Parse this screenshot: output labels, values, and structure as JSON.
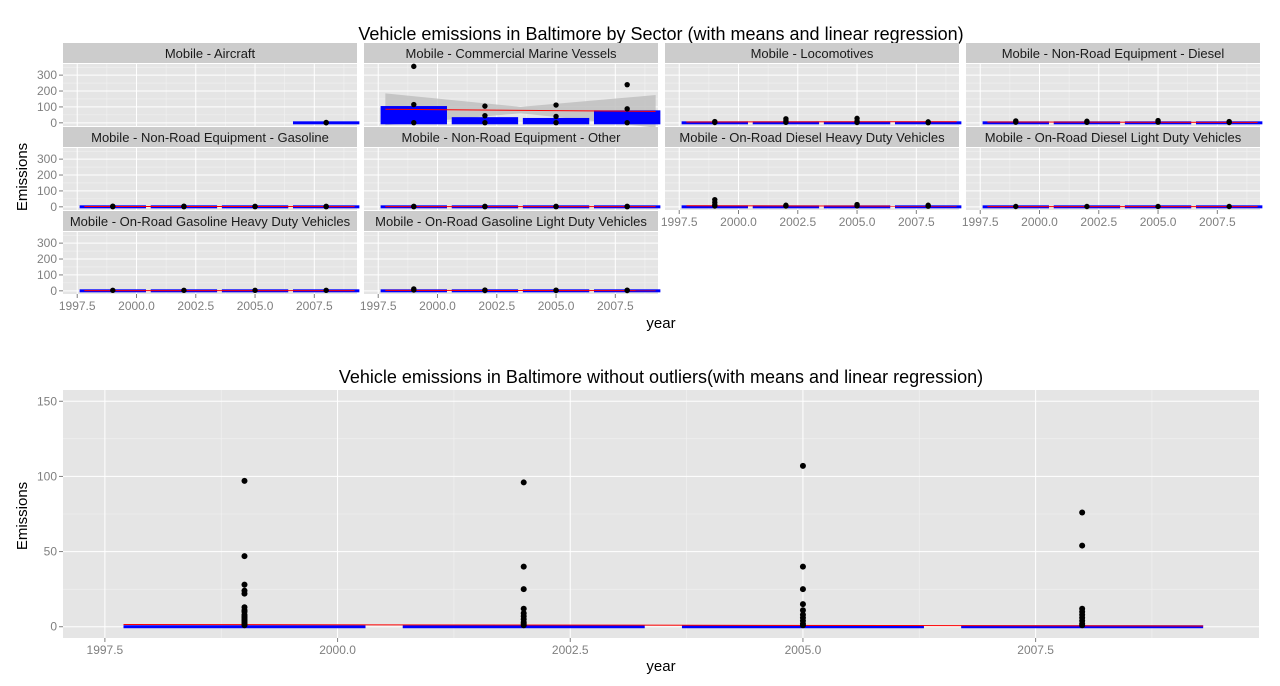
{
  "colors": {
    "panel": "#e5e5e5",
    "strip": "#cccccc",
    "point": "#000000",
    "mean_bar": "#0000ff",
    "regression": "#ff0000",
    "confidence_band": "#bfbfbf"
  },
  "chart_data": [
    {
      "type": "scatter",
      "title": "Vehicle emissions in Baltimore by Sector (with means and linear regression)",
      "xlabel": "year",
      "ylabel": "Emissions",
      "xlim": [
        1996.9,
        2009.3
      ],
      "ylim": [
        -20,
        370
      ],
      "x_ticks": [
        1997.5,
        2000.0,
        2002.5,
        2005.0,
        2007.5
      ],
      "x_tick_labels": [
        "1997.5",
        "2000.0",
        "2002.5",
        "2005.0",
        "2007.5"
      ],
      "y_ticks": [
        0,
        100,
        200,
        300
      ],
      "y_tick_labels": [
        "0",
        "100",
        "200",
        "300"
      ],
      "grid": true,
      "facets": [
        {
          "name": "Mobile - Aircraft",
          "points": [
            [
              2008,
              2
            ],
            [
              2008,
              0.5
            ]
          ],
          "means": [
            [
              2008,
              1
            ]
          ],
          "regression": null,
          "band": null
        },
        {
          "name": "Mobile - Commercial Marine Vessels",
          "points": [
            [
              1999,
              355
            ],
            [
              1999,
              115
            ],
            [
              1999,
              1
            ],
            [
              2002,
              105
            ],
            [
              2002,
              45
            ],
            [
              2002,
              1
            ],
            [
              2005,
              112
            ],
            [
              2005,
              40
            ],
            [
              2005,
              1
            ],
            [
              2008,
              240
            ],
            [
              2008,
              88
            ],
            [
              2008,
              1
            ]
          ],
          "means": [
            [
              1999,
              115
            ],
            [
              2002,
              45
            ],
            [
              2005,
              40
            ],
            [
              2008,
              88
            ]
          ],
          "regression": [
            [
              1997.8,
              85
            ],
            [
              2009.2,
              72
            ]
          ],
          "band": [
            [
              1997.8,
              185,
              -15
            ],
            [
              2003.5,
              100,
              60
            ],
            [
              2009.2,
              175,
              -30
            ]
          ]
        },
        {
          "name": "Mobile - Locomotives",
          "points": [
            [
              1999,
              8
            ],
            [
              1999,
              2
            ],
            [
              2002,
              25
            ],
            [
              2002,
              12
            ],
            [
              2002,
              3
            ],
            [
              2005,
              28
            ],
            [
              2005,
              10
            ],
            [
              2005,
              2
            ],
            [
              2008,
              6
            ],
            [
              2008,
              1
            ]
          ],
          "means": [
            [
              1999,
              4
            ],
            [
              2002,
              14
            ],
            [
              2005,
              14
            ],
            [
              2008,
              4
            ]
          ],
          "regression": [
            [
              1997.8,
              5
            ],
            [
              2009.2,
              7
            ]
          ],
          "band": null
        },
        {
          "name": "Mobile - Non-Road Equipment - Diesel",
          "points": [
            [
              1999,
              12
            ],
            [
              1999,
              4
            ],
            [
              2002,
              10
            ],
            [
              2002,
              3
            ],
            [
              2005,
              14
            ],
            [
              2005,
              4
            ],
            [
              2008,
              8
            ],
            [
              2008,
              2
            ]
          ],
          "means": [
            [
              1999,
              5
            ],
            [
              2002,
              5
            ],
            [
              2005,
              6
            ],
            [
              2008,
              3
            ]
          ],
          "regression": [
            [
              1997.8,
              5
            ],
            [
              2009.2,
              3
            ]
          ],
          "band": null
        },
        {
          "name": "Mobile - Non-Road Equipment - Gasoline",
          "points": [
            [
              1999,
              4
            ],
            [
              1999,
              1
            ],
            [
              2002,
              4
            ],
            [
              2002,
              1
            ],
            [
              2005,
              3
            ],
            [
              2005,
              1
            ],
            [
              2008,
              3
            ],
            [
              2008,
              1
            ]
          ],
          "means": [
            [
              1999,
              2
            ],
            [
              2002,
              2
            ],
            [
              2005,
              2
            ],
            [
              2008,
              2
            ]
          ],
          "regression": [
            [
              1997.8,
              2
            ],
            [
              2009.2,
              1.5
            ]
          ],
          "band": null
        },
        {
          "name": "Mobile - Non-Road Equipment - Other",
          "points": [
            [
              1999,
              3
            ],
            [
              1999,
              1
            ],
            [
              2002,
              3
            ],
            [
              2002,
              1
            ],
            [
              2005,
              3
            ],
            [
              2005,
              1
            ],
            [
              2008,
              3
            ],
            [
              2008,
              1
            ]
          ],
          "means": [
            [
              1999,
              1.5
            ],
            [
              2002,
              1.5
            ],
            [
              2005,
              1.5
            ],
            [
              2008,
              1.5
            ]
          ],
          "regression": [
            [
              1997.8,
              1.5
            ],
            [
              2009.2,
              1.5
            ]
          ],
          "band": null
        },
        {
          "name": "Mobile - On-Road Diesel Heavy Duty Vehicles",
          "points": [
            [
              1999,
              45
            ],
            [
              1999,
              28
            ],
            [
              1999,
              12
            ],
            [
              1999,
              5
            ],
            [
              2002,
              10
            ],
            [
              2002,
              5
            ],
            [
              2005,
              14
            ],
            [
              2005,
              6
            ],
            [
              2008,
              10
            ],
            [
              2008,
              4
            ]
          ],
          "means": [
            [
              1999,
              8
            ],
            [
              2002,
              5
            ],
            [
              2005,
              6
            ],
            [
              2008,
              4
            ]
          ],
          "regression": [
            [
              1997.8,
              7
            ],
            [
              2009.2,
              4
            ]
          ],
          "band": null
        },
        {
          "name": "Mobile - On-Road Diesel Light Duty Vehicles",
          "points": [
            [
              1999,
              2
            ],
            [
              2002,
              2
            ],
            [
              2005,
              2
            ],
            [
              2008,
              2
            ]
          ],
          "means": [
            [
              1999,
              1
            ],
            [
              2002,
              1
            ],
            [
              2005,
              1
            ],
            [
              2008,
              1
            ]
          ],
          "regression": [
            [
              1997.8,
              1
            ],
            [
              2009.2,
              1
            ]
          ],
          "band": null
        },
        {
          "name": "Mobile - On-Road Gasoline Heavy Duty Vehicles",
          "points": [
            [
              1999,
              3
            ],
            [
              2002,
              3
            ],
            [
              2005,
              3
            ],
            [
              2008,
              3
            ]
          ],
          "means": [
            [
              1999,
              1
            ],
            [
              2002,
              1
            ],
            [
              2005,
              1
            ],
            [
              2008,
              1
            ]
          ],
          "regression": [
            [
              1997.8,
              1
            ],
            [
              2009.2,
              1
            ]
          ],
          "band": null
        },
        {
          "name": "Mobile - On-Road Gasoline Light Duty Vehicles",
          "points": [
            [
              1999,
              12
            ],
            [
              1999,
              5
            ],
            [
              2002,
              5
            ],
            [
              2002,
              2
            ],
            [
              2005,
              4
            ],
            [
              2005,
              2
            ],
            [
              2008,
              4
            ],
            [
              2008,
              2
            ]
          ],
          "means": [
            [
              1999,
              3
            ],
            [
              2002,
              2
            ],
            [
              2005,
              2
            ],
            [
              2008,
              2
            ]
          ],
          "regression": [
            [
              1997.8,
              2.5
            ],
            [
              2009.2,
              1.5
            ]
          ],
          "band": null
        }
      ]
    },
    {
      "type": "scatter",
      "title": "Vehicle emissions in Baltimore without outliers(with means and linear regression)",
      "xlabel": "year",
      "ylabel": "Emissions",
      "xlim": [
        1997.05,
        2009.9
      ],
      "ylim": [
        -7.5,
        157.5
      ],
      "x_ticks": [
        1997.5,
        2000.0,
        2002.5,
        2005.0,
        2007.5
      ],
      "x_tick_labels": [
        "1997.5",
        "2000.0",
        "2002.5",
        "2005.0",
        "2007.5"
      ],
      "y_ticks": [
        0,
        50,
        100,
        150
      ],
      "y_tick_labels": [
        "0",
        "50",
        "100",
        "150"
      ],
      "grid": true,
      "points": [
        [
          1999,
          97
        ],
        [
          1999,
          47
        ],
        [
          1999,
          28
        ],
        [
          1999,
          24
        ],
        [
          1999,
          22
        ],
        [
          1999,
          13
        ],
        [
          1999,
          11
        ],
        [
          1999,
          10
        ],
        [
          1999,
          8
        ],
        [
          1999,
          7
        ],
        [
          1999,
          6
        ],
        [
          1999,
          5
        ],
        [
          1999,
          4
        ],
        [
          1999,
          3
        ],
        [
          1999,
          2
        ],
        [
          1999,
          1
        ],
        [
          2002,
          96
        ],
        [
          2002,
          40
        ],
        [
          2002,
          25
        ],
        [
          2002,
          12
        ],
        [
          2002,
          9
        ],
        [
          2002,
          7
        ],
        [
          2002,
          5
        ],
        [
          2002,
          3
        ],
        [
          2002,
          2
        ],
        [
          2002,
          1
        ],
        [
          2005,
          107
        ],
        [
          2005,
          40
        ],
        [
          2005,
          25
        ],
        [
          2005,
          15
        ],
        [
          2005,
          11
        ],
        [
          2005,
          8
        ],
        [
          2005,
          6
        ],
        [
          2005,
          4
        ],
        [
          2005,
          2
        ],
        [
          2005,
          1
        ],
        [
          2008,
          76
        ],
        [
          2008,
          54
        ],
        [
          2008,
          12
        ],
        [
          2008,
          10
        ],
        [
          2008,
          8
        ],
        [
          2008,
          6
        ],
        [
          2008,
          4
        ],
        [
          2008,
          2
        ],
        [
          2008,
          1
        ]
      ],
      "means": [
        [
          1999,
          1.8
        ],
        [
          2002,
          1.2
        ],
        [
          2005,
          1.0
        ],
        [
          2008,
          0.8
        ]
      ],
      "regression": [
        [
          1997.7,
          1.5
        ],
        [
          2009.3,
          0.5
        ]
      ]
    }
  ]
}
